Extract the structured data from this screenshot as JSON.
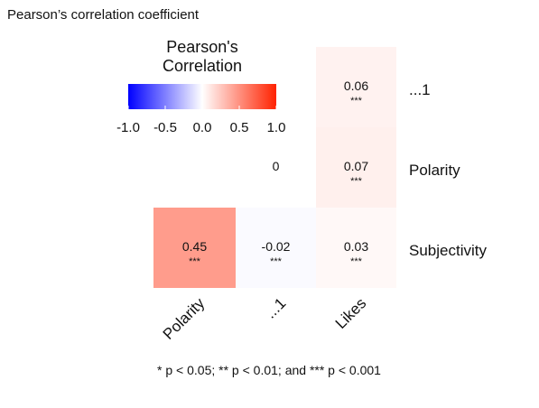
{
  "page_title": "Pearson’s correlation coefficient",
  "chart_data": {
    "type": "heatmap",
    "title": "",
    "legend": {
      "title_lines": [
        "Pearson's",
        "Correlation"
      ],
      "ticks": [
        "-1.0",
        "-0.5",
        "0.0",
        "0.5",
        "1.0"
      ],
      "range": [
        -1.0,
        1.0
      ],
      "low_color": "#0000ff",
      "mid_color": "#ffffff",
      "high_color": "#ff2200",
      "placement": "top-left"
    },
    "columns": [
      "Polarity",
      "...1",
      "Likes"
    ],
    "rows": [
      "...1",
      "Polarity",
      "Subjectivity"
    ],
    "cells": [
      {
        "row": "...1",
        "col": "Likes",
        "value": 0.06,
        "label": "0.06",
        "sig": "***"
      },
      {
        "row": "Polarity",
        "col": "...1",
        "value": 0,
        "label": "0",
        "sig": "",
        "blank": true
      },
      {
        "row": "Polarity",
        "col": "Likes",
        "value": 0.07,
        "label": "0.07",
        "sig": "***"
      },
      {
        "row": "Subjectivity",
        "col": "Polarity",
        "value": 0.45,
        "label": "0.45",
        "sig": "***"
      },
      {
        "row": "Subjectivity",
        "col": "...1",
        "value": -0.02,
        "label": "-0.02",
        "sig": "***"
      },
      {
        "row": "Subjectivity",
        "col": "Likes",
        "value": 0.03,
        "label": "0.03",
        "sig": "***"
      }
    ],
    "footnote": "* p < 0.05; ** p < 0.01; and *** p < 0.001"
  }
}
